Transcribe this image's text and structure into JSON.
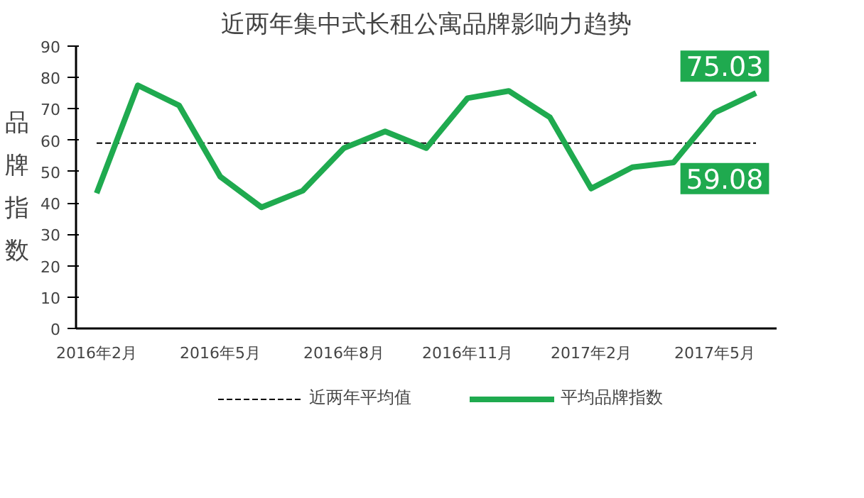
{
  "chart_data": {
    "type": "line",
    "title": "近两年集中式长租公寓品牌影响力趋势",
    "ylabel": "品牌指数",
    "categories": [
      "2016年2月",
      null,
      null,
      "2016年5月",
      null,
      null,
      "2016年8月",
      null,
      null,
      "2016年11月",
      null,
      null,
      "2017年2月",
      null,
      null,
      "2017年5月",
      null
    ],
    "series": [
      {
        "name": "平均品牌指数",
        "color": "#1faa4f",
        "values": [
          43.1,
          77.5,
          71.1,
          48.4,
          38.6,
          43.9,
          57.5,
          62.8,
          57.5,
          73.4,
          75.7,
          67.3,
          44.6,
          51.4,
          52.9,
          68.8,
          75.03
        ],
        "value_labels": [
          null,
          null,
          null,
          null,
          null,
          null,
          null,
          null,
          null,
          null,
          null,
          null,
          null,
          null,
          null,
          null,
          "75.03"
        ]
      }
    ],
    "ref_lines": [
      {
        "axis": "y",
        "value": 59.08,
        "label": "近两年平均值",
        "color": "#000000",
        "line_style": "dashed"
      }
    ],
    "annotations": [
      {
        "text": "59.08",
        "y": 59.08
      }
    ],
    "ylim": [
      0,
      90
    ],
    "yticks": [
      0,
      10,
      20,
      30,
      40,
      50,
      60,
      70,
      80,
      90
    ],
    "grid": false,
    "legend": "bottom",
    "marker": "none",
    "line_style": "solid"
  }
}
